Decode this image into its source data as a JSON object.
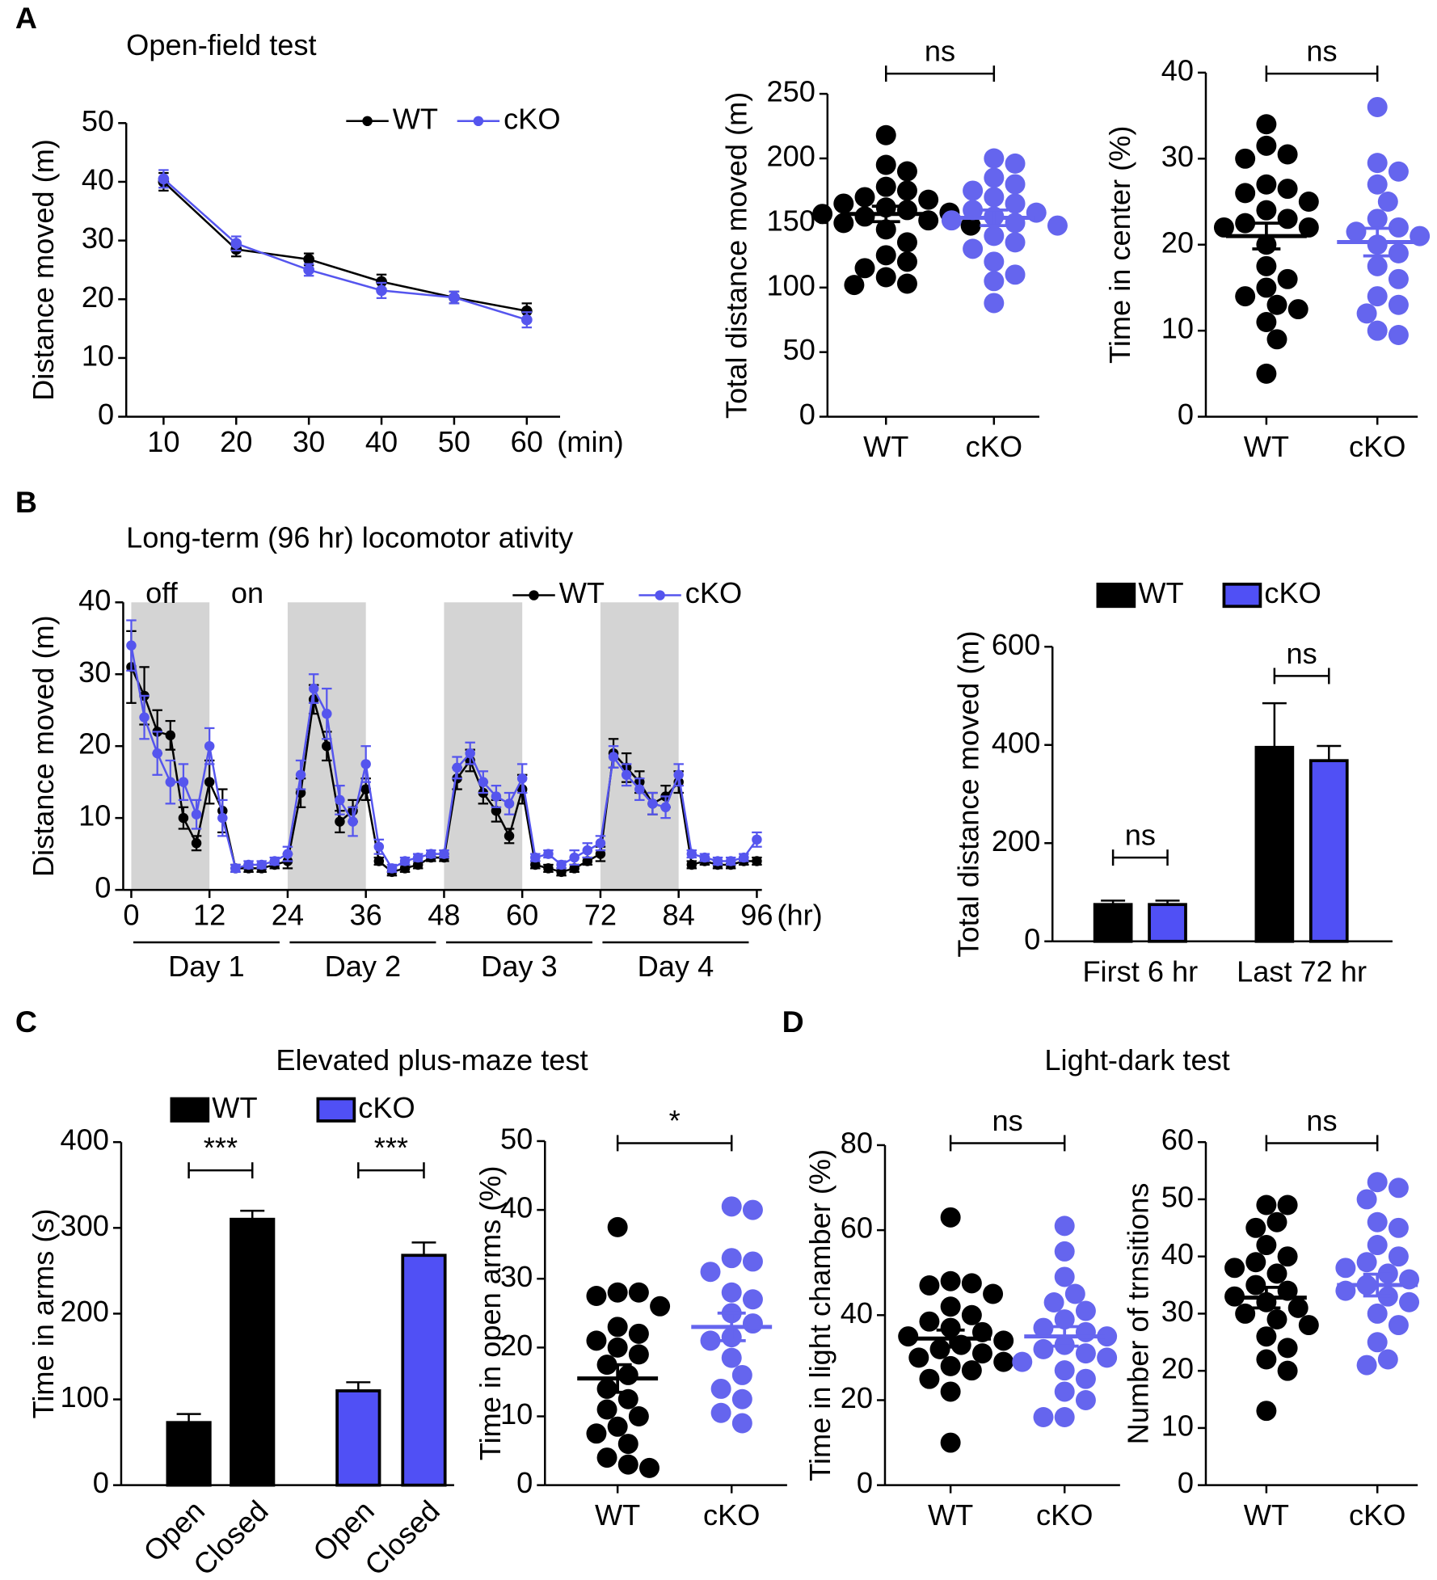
{
  "panel_labels": [
    "A",
    "B",
    "C",
    "D"
  ],
  "chart_data": [
    {
      "type": "line",
      "title": "Open-field test",
      "ylabel": "Distance moved (m)",
      "xlabel": "(min)",
      "categories": [
        "10",
        "20",
        "30",
        "40",
        "50",
        "60"
      ],
      "series": [
        {
          "name": "WT",
          "color": "#000000",
          "values": [
            40,
            28.5,
            26.8,
            23,
            20.3,
            18
          ],
          "errors": [
            1.5,
            1.2,
            1,
            1.2,
            1,
            1.3
          ]
        },
        {
          "name": "cKO",
          "color": "#5555ee",
          "values": [
            40.5,
            29.5,
            25,
            21.5,
            20.3,
            16.5
          ],
          "errors": [
            1.5,
            1.2,
            1,
            1.3,
            1,
            1.3
          ]
        }
      ],
      "ylim": [
        0,
        50
      ],
      "yticks": [
        0,
        10,
        20,
        30,
        40,
        50
      ]
    },
    {
      "type": "scatter",
      "ylabel": "Total distance moved (m)",
      "annotations": [
        "ns"
      ],
      "groups": [
        {
          "label": "WT",
          "color": "#000000",
          "values": [
            218,
            195,
            190,
            178,
            175,
            170,
            168,
            165,
            162,
            160,
            158,
            157,
            155,
            152,
            150,
            148,
            145,
            135,
            125,
            120,
            115,
            108,
            103,
            102
          ],
          "mean": 157,
          "sem": 6
        },
        {
          "label": "cKO",
          "color": "#6565ee",
          "values": [
            200,
            196,
            185,
            180,
            175,
            170,
            165,
            160,
            158,
            155,
            152,
            150,
            148,
            140,
            135,
            130,
            120,
            110,
            105,
            88
          ],
          "mean": 154,
          "sem": 6
        }
      ],
      "ylim": [
        0,
        250
      ],
      "yticks": [
        0,
        50,
        100,
        150,
        200,
        250
      ]
    },
    {
      "type": "scatter",
      "ylabel": "Time in center (%)",
      "annotations": [
        "ns"
      ],
      "groups": [
        {
          "label": "WT",
          "color": "#000000",
          "values": [
            34,
            31.5,
            30.5,
            30,
            27,
            26.5,
            26,
            25,
            24,
            23,
            22.5,
            22,
            22,
            20,
            17.5,
            16,
            15,
            14,
            13,
            12.5,
            11,
            9,
            5
          ],
          "mean": 21,
          "sem": 1.5
        },
        {
          "label": "cKO",
          "color": "#6565ee",
          "values": [
            36,
            29.5,
            28.5,
            27,
            25,
            23,
            22,
            21.5,
            21,
            20,
            19,
            17.5,
            16,
            14,
            13,
            12,
            10,
            9.5
          ],
          "mean": 20.3,
          "sem": 1.6
        }
      ],
      "ylim": [
        0,
        40
      ],
      "yticks": [
        0,
        10,
        20,
        30,
        40
      ]
    },
    {
      "type": "line",
      "title": "Long-term (96 hr) locomotor ativity",
      "ylabel": "Distance moved (m)",
      "xlabel": "(hr)",
      "light_labels": [
        "off",
        "on"
      ],
      "day_labels": [
        "Day 1",
        "Day 2",
        "Day 3",
        "Day 4"
      ],
      "dark_periods": [
        [
          0,
          12
        ],
        [
          24,
          36
        ],
        [
          48,
          60
        ],
        [
          72,
          84
        ]
      ],
      "x": [
        0,
        2,
        4,
        6,
        8,
        10,
        12,
        14,
        16,
        18,
        20,
        22,
        24,
        26,
        28,
        30,
        32,
        34,
        36,
        38,
        40,
        42,
        44,
        46,
        48,
        50,
        52,
        54,
        56,
        58,
        60,
        62,
        64,
        66,
        68,
        70,
        72,
        74,
        76,
        78,
        80,
        82,
        84,
        86,
        88,
        90,
        92,
        94,
        96
      ],
      "series": [
        {
          "name": "WT",
          "color": "#000000",
          "values": [
            31,
            27,
            22,
            21.5,
            10,
            6.5,
            15,
            11,
            3,
            3,
            3,
            3.5,
            4,
            13.5,
            26.5,
            20,
            9.5,
            11,
            14,
            4,
            2.5,
            3,
            3.5,
            4.5,
            4.5,
            15.5,
            18,
            13.5,
            11,
            7.5,
            14,
            3.5,
            3,
            2.5,
            3,
            4,
            5,
            19,
            17,
            15,
            12,
            13,
            15,
            3.5,
            4,
            3.5,
            3.5,
            4,
            4
          ],
          "errors": [
            5,
            4,
            3,
            2,
            1.5,
            1,
            3,
            3,
            0.5,
            0.5,
            0.5,
            0.5,
            1,
            2,
            2,
            2,
            1.5,
            1.5,
            1.5,
            0.5,
            0.5,
            0.5,
            0.5,
            0.5,
            0.5,
            1.5,
            1.5,
            1.5,
            1.5,
            1,
            2,
            0.5,
            0.5,
            0.5,
            0.5,
            0.5,
            1,
            2,
            2,
            1.5,
            1.5,
            1.5,
            1.5,
            0.5,
            0.5,
            0.5,
            0.5,
            0.5,
            0.5
          ]
        },
        {
          "name": "cKO",
          "color": "#5555ee",
          "values": [
            34,
            24,
            19,
            15,
            15,
            10.5,
            20,
            10,
            3,
            3.5,
            3.5,
            4,
            5,
            16,
            28,
            24.5,
            12.5,
            9.5,
            17.5,
            6,
            3,
            4,
            4.5,
            5,
            5,
            17,
            19,
            15,
            13,
            12,
            15.5,
            4.5,
            5,
            3.5,
            4.5,
            5.5,
            6.5,
            18.5,
            16,
            14,
            12,
            11.5,
            16,
            5,
            4.5,
            4,
            4,
            4.5,
            7
          ],
          "errors": [
            3.5,
            3,
            3,
            3,
            2.5,
            2,
            2.5,
            2.5,
            0.5,
            0.5,
            0.5,
            0.5,
            1,
            2,
            2,
            3.5,
            2,
            2,
            2.5,
            1,
            0.5,
            0.5,
            0.5,
            0.5,
            0.5,
            1.5,
            1.5,
            1.5,
            1.5,
            1.5,
            2,
            0.5,
            0.5,
            0.5,
            1,
            1,
            1,
            1.5,
            1.5,
            1.5,
            1.5,
            1.5,
            1.5,
            0.5,
            0.5,
            0.5,
            0.5,
            0.5,
            1
          ]
        }
      ],
      "ylim": [
        0,
        40
      ],
      "yticks": [
        0,
        10,
        20,
        30,
        40
      ],
      "xlim": [
        0,
        96
      ],
      "xticks": [
        0,
        12,
        24,
        36,
        48,
        60,
        72,
        84,
        96
      ]
    },
    {
      "type": "bar",
      "ylabel": "Total distance moved (m)",
      "annotations": [
        "ns",
        "ns"
      ],
      "categories": [
        "First 6 hr",
        "Last 72 hr"
      ],
      "series": [
        {
          "name": "WT",
          "color": "#000000",
          "values": [
            75,
            395
          ],
          "errors": [
            8,
            90
          ]
        },
        {
          "name": "cKO",
          "color": "#5050f5",
          "values": [
            75,
            368
          ],
          "errors": [
            8,
            30
          ]
        }
      ],
      "ylim": [
        0,
        600
      ],
      "yticks": [
        0,
        200,
        400,
        600
      ]
    },
    {
      "type": "bar",
      "title": "Elevated plus-maze test",
      "ylabel": "Time in arms (s)",
      "annotations": [
        "***",
        "***"
      ],
      "categories": [
        "Open",
        "Closed"
      ],
      "series": [
        {
          "name": "WT",
          "color": "#000000",
          "values": [
            73,
            310
          ],
          "errors": [
            10,
            10
          ]
        },
        {
          "name": "cKO",
          "color": "#5050f5",
          "values": [
            110,
            268
          ],
          "errors": [
            10,
            15
          ]
        }
      ],
      "ylim": [
        0,
        400
      ],
      "yticks": [
        0,
        100,
        200,
        300,
        400
      ]
    },
    {
      "type": "scatter",
      "ylabel": "Time in open arms (%)",
      "annotations": [
        "*"
      ],
      "groups": [
        {
          "label": "WT",
          "color": "#000000",
          "values": [
            37.5,
            28,
            28,
            27.5,
            26,
            23,
            22,
            21,
            20,
            19,
            17.5,
            16,
            14,
            12.5,
            11,
            10,
            8.5,
            7.5,
            6,
            4,
            3,
            2.5
          ],
          "mean": 15.5,
          "sem": 2
        },
        {
          "label": "cKO",
          "color": "#6565ee",
          "values": [
            40.5,
            40,
            33,
            32.5,
            31,
            28,
            27,
            25,
            23.5,
            21.5,
            21,
            18.5,
            16,
            14,
            12.5,
            10.5,
            9
          ],
          "mean": 23,
          "sem": 2
        }
      ],
      "ylim": [
        0,
        50
      ],
      "yticks": [
        0,
        10,
        20,
        30,
        40,
        50
      ]
    },
    {
      "type": "scatter",
      "title": "Light-dark test",
      "ylabel": "Time in light chamber (%)",
      "annotations": [
        "ns"
      ],
      "groups": [
        {
          "label": "WT",
          "color": "#000000",
          "values": [
            63,
            48,
            47.5,
            47,
            45,
            42,
            40,
            38.5,
            37,
            36,
            35,
            34,
            33,
            32,
            31,
            30,
            29,
            28,
            27,
            25,
            22,
            10
          ],
          "mean": 34.5,
          "sem": 2
        },
        {
          "label": "cKO",
          "color": "#6565ee",
          "values": [
            61,
            55,
            49,
            45,
            43,
            41,
            39,
            37,
            36,
            35,
            33,
            32,
            31,
            30,
            29,
            27,
            25,
            22,
            20,
            16,
            16
          ],
          "mean": 35,
          "sem": 2.3
        }
      ],
      "ylim": [
        0,
        80
      ],
      "yticks": [
        0,
        20,
        40,
        60,
        80
      ]
    },
    {
      "type": "scatter",
      "ylabel": "Number of trnsitions",
      "annotations": [
        "ns"
      ],
      "groups": [
        {
          "label": "WT",
          "color": "#000000",
          "values": [
            49,
            49,
            46,
            45,
            42,
            40,
            39,
            38,
            37,
            35,
            34,
            33,
            32,
            31,
            30,
            29,
            28,
            26,
            24,
            22,
            20,
            13
          ],
          "mean": 32.8,
          "sem": 1.8
        },
        {
          "label": "cKO",
          "color": "#6565ee",
          "values": [
            53,
            52,
            50,
            46,
            45,
            42,
            40,
            39,
            38,
            37,
            36,
            35,
            34,
            33,
            32,
            30,
            28,
            25,
            22,
            21
          ],
          "mean": 35,
          "sem": 1.9
        }
      ],
      "ylim": [
        0,
        60
      ],
      "yticks": [
        0,
        10,
        20,
        30,
        40,
        50,
        60
      ]
    }
  ]
}
